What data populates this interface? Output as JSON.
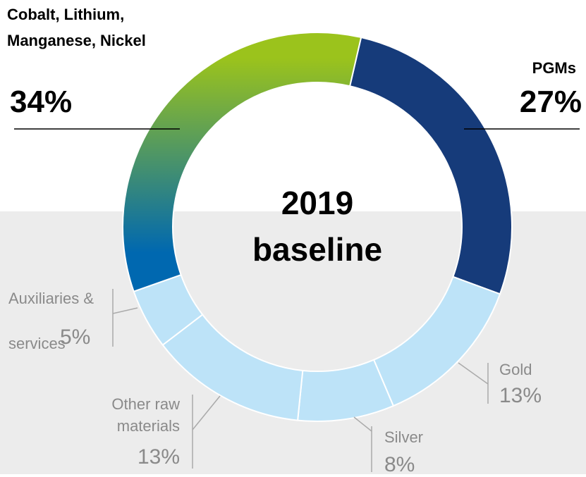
{
  "chart_data": {
    "type": "donut",
    "center_text": "2019 baseline",
    "categories": [
      "PGMs",
      "Gold",
      "Silver",
      "Other raw materials",
      "Auxiliaries & services",
      "Cobalt, Lithium, Manganese, Nickel"
    ],
    "values": [
      27,
      13,
      8,
      13,
      5,
      34
    ],
    "value_labels": [
      "27%",
      "13%",
      "8%",
      "13%",
      "5%",
      "34%"
    ],
    "colors": [
      "#163b7a",
      "#bde3f8",
      "#bde3f8",
      "#bde3f8",
      "#bde3f8",
      "#0068b0"
    ],
    "gradient_colors": [
      "#9bc31c",
      "#0068b0"
    ]
  }
}
